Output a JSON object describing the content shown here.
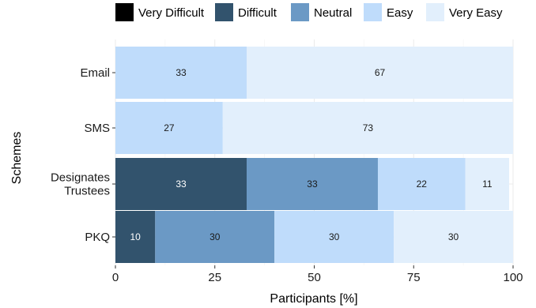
{
  "chart_data": {
    "type": "bar",
    "orientation": "horizontal",
    "stacked": true,
    "categories": [
      "Email",
      "SMS",
      "Designates\nTrustees",
      "PKQ"
    ],
    "series": [
      {
        "name": "Very Difficult",
        "color": "#000000",
        "values": [
          0,
          0,
          0,
          0
        ]
      },
      {
        "name": "Difficult",
        "color": "#32536d",
        "values": [
          0,
          0,
          33,
          10
        ]
      },
      {
        "name": "Neutral",
        "color": "#6b99c5",
        "values": [
          0,
          0,
          33,
          30
        ]
      },
      {
        "name": "Easy",
        "color": "#bfdcfb",
        "values": [
          33,
          27,
          22,
          30
        ]
      },
      {
        "name": "Very Easy",
        "color": "#e2effc",
        "values": [
          67,
          73,
          11,
          30
        ]
      }
    ],
    "xlabel": "Participants [%]",
    "ylabel": "Schemes",
    "xlim": [
      0,
      100
    ],
    "xticks": [
      0,
      25,
      50,
      75,
      100
    ],
    "legend_position": "top",
    "grid": true
  }
}
